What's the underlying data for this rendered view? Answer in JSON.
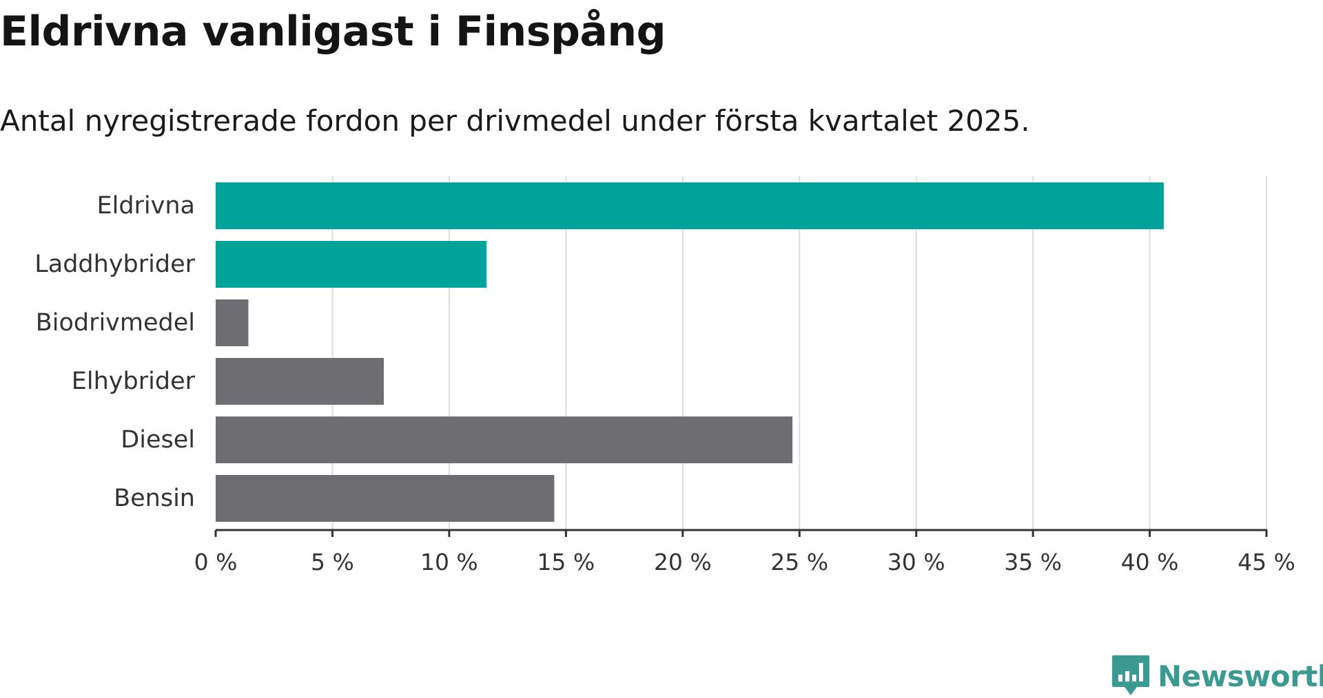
{
  "title": "Eldrivna vanligast i Finspång",
  "subtitle": "Antal nyregistrerade fordon per drivmedel under första kvartalet 2025.",
  "brand": {
    "name": "Newsworthy",
    "icon": "newsworthy-logo-icon",
    "color": "#3a9a92"
  },
  "colors": {
    "highlight": "#00a39a",
    "other": "#6e6d72",
    "grid": "#dcdcdc",
    "axis": "#333333"
  },
  "chart_data": {
    "type": "bar",
    "orientation": "horizontal",
    "categories": [
      "Eldrivna",
      "Laddhybrider",
      "Biodrivmedel",
      "Elhybrider",
      "Diesel",
      "Bensin"
    ],
    "values": [
      40.6,
      11.6,
      1.4,
      7.2,
      24.7,
      14.5
    ],
    "highlighted": [
      true,
      true,
      false,
      false,
      false,
      false
    ],
    "xlim": [
      0,
      45
    ],
    "xticks": [
      0,
      5,
      10,
      15,
      20,
      25,
      30,
      35,
      40,
      45
    ],
    "xtick_labels": [
      "0 %",
      "5 %",
      "10 %",
      "15 %",
      "20 %",
      "25 %",
      "30 %",
      "35 %",
      "40 %",
      "45 %"
    ],
    "grid": true,
    "legend": "none"
  }
}
